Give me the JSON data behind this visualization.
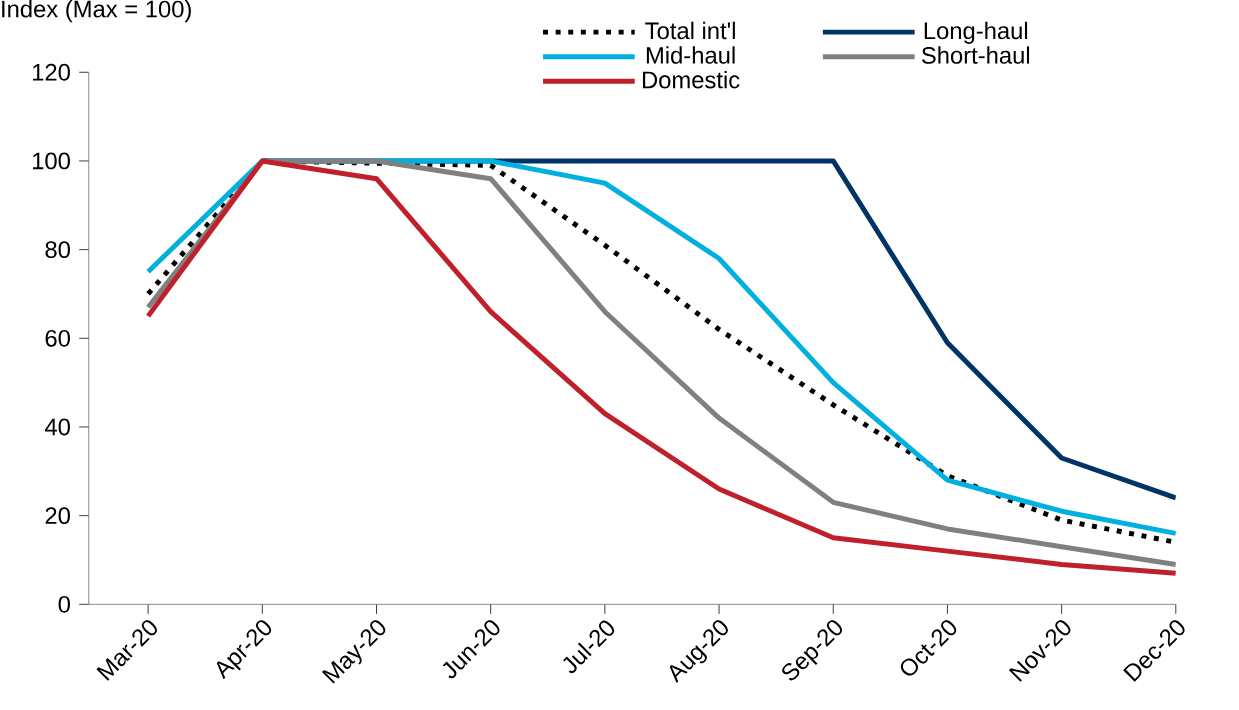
{
  "chart_data": {
    "type": "line",
    "ylabel": "Index (Max = 100)",
    "categories": [
      "Mar-20",
      "Apr-20",
      "May-20",
      "Jun-20",
      "Jul-20",
      "Aug-20",
      "Sep-20",
      "Oct-20",
      "Nov-20",
      "Dec-20"
    ],
    "series": [
      {
        "name": "Total int'l",
        "color": "#000000",
        "line_style": "dotted",
        "values": [
          70,
          100,
          null,
          99,
          81,
          62,
          45,
          29,
          19,
          14
        ]
      },
      {
        "name": "Long-haul",
        "color": "#003366",
        "values": [
          null,
          100,
          100,
          100,
          100,
          100,
          100,
          59,
          33,
          24
        ]
      },
      {
        "name": "Mid-haul",
        "color": "#00b0e0",
        "values": [
          75,
          100,
          100,
          100,
          95,
          78,
          50,
          28,
          21,
          16
        ]
      },
      {
        "name": "Short-haul",
        "color": "#808080",
        "values": [
          67,
          100,
          100,
          96,
          66,
          42,
          23,
          17,
          13,
          9
        ]
      },
      {
        "name": "Domestic",
        "color": "#c0202a",
        "values": [
          65,
          100,
          96,
          66,
          43,
          26,
          15,
          12,
          9,
          7
        ]
      }
    ],
    "ylim": [
      0,
      120
    ],
    "yticks": [
      0,
      20,
      40,
      60,
      80,
      100,
      120
    ],
    "grid": false,
    "legend": "top"
  }
}
